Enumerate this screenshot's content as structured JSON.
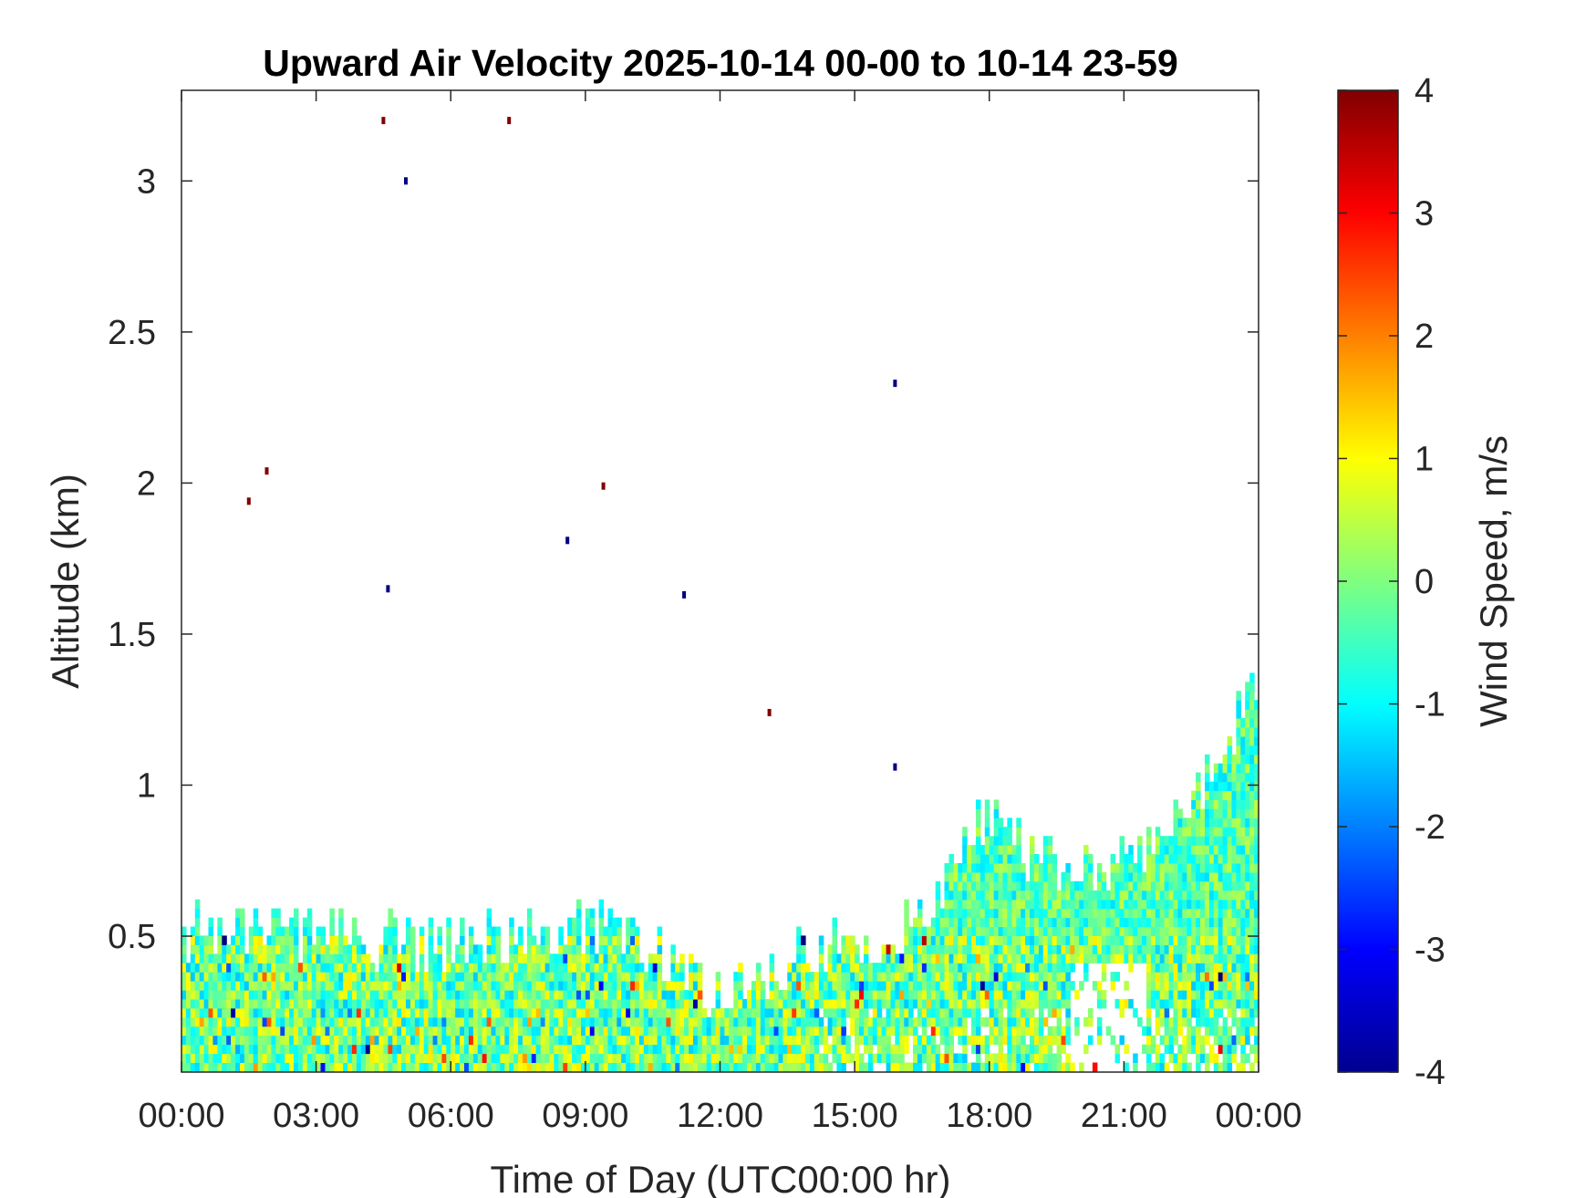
{
  "chart_data": {
    "type": "heatmap",
    "title": "Upward Air Velocity 2025-10-14 00-00 to 10-14 23-59",
    "xlabel": "Time of Day (UTC00:00 hr)",
    "ylabel": "Altitude (km)",
    "x_unit": "hours",
    "xlim": [
      0,
      24
    ],
    "ylim": [
      0.05,
      3.3
    ],
    "x_ticks": [
      0,
      3,
      6,
      9,
      12,
      15,
      18,
      21,
      24
    ],
    "x_tick_labels": [
      "00:00",
      "03:00",
      "06:00",
      "09:00",
      "12:00",
      "15:00",
      "18:00",
      "21:00",
      "00:00"
    ],
    "y_ticks": [
      0.5,
      1,
      1.5,
      2,
      2.5,
      3
    ],
    "y_tick_labels": [
      "0.5",
      "1",
      "1.5",
      "2",
      "2.5",
      "3"
    ],
    "colorbar": {
      "label": "Wind Speed, m/s",
      "range": [
        -4,
        4
      ],
      "ticks": [
        4,
        3,
        2,
        1,
        0,
        -1,
        -2,
        -3,
        -4
      ],
      "tick_labels": [
        "4",
        "3",
        "2",
        "1",
        "0",
        "-1",
        "-2",
        "-3",
        "-4"
      ],
      "colormap": "jet"
    },
    "data_top_envelope_km": {
      "hours": [
        0,
        2,
        4,
        6,
        8,
        9,
        10,
        11,
        11.5,
        12,
        13,
        14,
        15,
        16,
        16.5,
        17,
        17.5,
        18,
        19,
        20,
        21,
        22,
        23,
        23.5,
        24
      ],
      "altitude": [
        0.5,
        0.5,
        0.48,
        0.45,
        0.5,
        0.52,
        0.5,
        0.4,
        0.3,
        0.3,
        0.35,
        0.45,
        0.45,
        0.5,
        0.55,
        0.65,
        0.8,
        0.9,
        0.75,
        0.7,
        0.75,
        0.85,
        1.05,
        1.2,
        1.3
      ]
    },
    "velocity_character": "Below ~1 km: mostly -1.5 to +1.5 m/s (cyan, green, yellow), with scattered -3 to +3 m/s cells near the surface; a data gap near the surface around 20:00–21:30.",
    "outlier_points": [
      {
        "x": 1.5,
        "y": 1.94,
        "v": 4
      },
      {
        "x": 1.9,
        "y": 2.04,
        "v": 4
      },
      {
        "x": 4.5,
        "y": 3.2,
        "v": 4
      },
      {
        "x": 4.6,
        "y": 1.65,
        "v": -4
      },
      {
        "x": 5.0,
        "y": 3.0,
        "v": -4
      },
      {
        "x": 7.3,
        "y": 3.2,
        "v": 4
      },
      {
        "x": 8.6,
        "y": 1.81,
        "v": -4
      },
      {
        "x": 9.4,
        "y": 1.99,
        "v": 4
      },
      {
        "x": 11.2,
        "y": 1.63,
        "v": -4
      },
      {
        "x": 13.1,
        "y": 1.24,
        "v": 4
      },
      {
        "x": 15.9,
        "y": 2.33,
        "v": -4
      },
      {
        "x": 15.9,
        "y": 1.06,
        "v": -4
      }
    ]
  }
}
